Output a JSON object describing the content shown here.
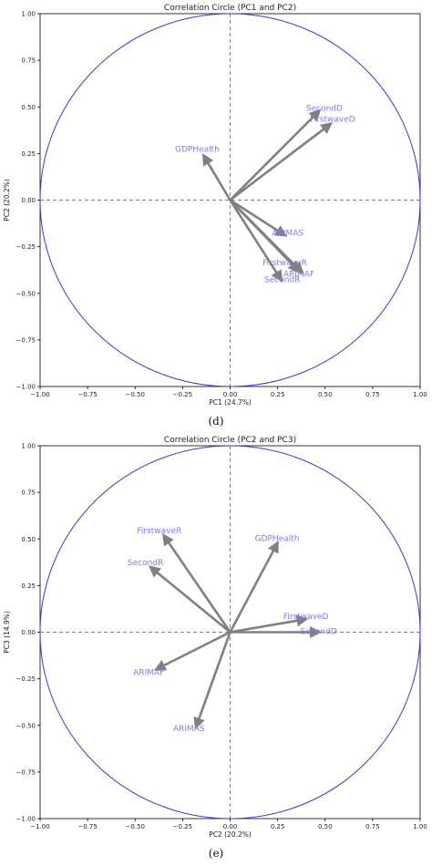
{
  "chart_data": [
    {
      "type": "scatter",
      "title": "Correlation Circle (PC1 and PC2)",
      "xlabel": "PC1 (24.7%)",
      "ylabel": "PC2 (20.2%)",
      "xlim": [
        -1.0,
        1.0
      ],
      "ylim": [
        -1.0,
        1.0
      ],
      "ticks": [
        "−1.00",
        "−0.75",
        "−0.50",
        "−0.25",
        "0.00",
        "0.25",
        "0.50",
        "0.75",
        "1.00"
      ],
      "panel_label": "(d)",
      "grid": false,
      "unit_circle_color": "#3a3ad8",
      "arrow_color": "#808080",
      "annotation_color": "#7c7cf0",
      "vectors": [
        {
          "name": "SecondD",
          "x": 0.47,
          "y": 0.48,
          "label_x": 0.4,
          "label_y": 0.48
        },
        {
          "name": "FirstwaveD",
          "x": 0.53,
          "y": 0.41,
          "label_x": 0.42,
          "label_y": 0.42
        },
        {
          "name": "GDPHealth",
          "x": -0.14,
          "y": 0.24,
          "label_x": -0.29,
          "label_y": 0.26
        },
        {
          "name": "ARIMAS",
          "x": 0.29,
          "y": -0.19,
          "label_x": 0.22,
          "label_y": -0.19
        },
        {
          "name": "FirstwaveR",
          "x": 0.36,
          "y": -0.38,
          "label_x": 0.17,
          "label_y": -0.35
        },
        {
          "name": "ARIMAF",
          "x": 0.38,
          "y": -0.39,
          "label_x": 0.28,
          "label_y": -0.41
        },
        {
          "name": "SecondR",
          "x": 0.27,
          "y": -0.43,
          "label_x": 0.18,
          "label_y": -0.44
        }
      ]
    },
    {
      "type": "scatter",
      "title": "Correlation Circle (PC2 and PC3)",
      "xlabel": "PC2 (20.2%)",
      "ylabel": "PC3 (14.9%)",
      "xlim": [
        -1.0,
        1.0
      ],
      "ylim": [
        -1.0,
        1.0
      ],
      "ticks": [
        "−1.00",
        "−0.75",
        "−0.50",
        "−0.25",
        "0.00",
        "0.25",
        "0.50",
        "0.75",
        "1.00"
      ],
      "panel_label": "(e)",
      "grid": false,
      "unit_circle_color": "#3a3ad8",
      "arrow_color": "#808080",
      "annotation_color": "#7c7cf0",
      "vectors": [
        {
          "name": "FirstwaveR",
          "x": -0.35,
          "y": 0.52,
          "label_x": -0.49,
          "label_y": 0.53
        },
        {
          "name": "GDPHealth",
          "x": 0.25,
          "y": 0.48,
          "label_x": 0.13,
          "label_y": 0.49
        },
        {
          "name": "SecondR",
          "x": -0.42,
          "y": 0.35,
          "label_x": -0.54,
          "label_y": 0.36
        },
        {
          "name": "FirstwaveD",
          "x": 0.4,
          "y": 0.07,
          "label_x": 0.28,
          "label_y": 0.07
        },
        {
          "name": "SecondD",
          "x": 0.47,
          "y": 0.0,
          "label_x": 0.37,
          "label_y": -0.01
        },
        {
          "name": "ARIMAF",
          "x": -0.39,
          "y": -0.2,
          "label_x": -0.51,
          "label_y": -0.23
        },
        {
          "name": "ARIMAS",
          "x": -0.18,
          "y": -0.51,
          "label_x": -0.3,
          "label_y": -0.53
        }
      ]
    }
  ]
}
